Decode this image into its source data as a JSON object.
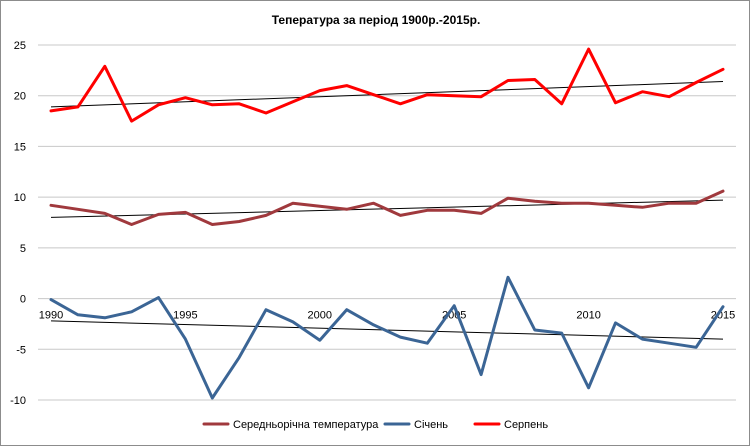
{
  "chart_data": {
    "type": "line",
    "title": "Тепература за період 1900р.-2015р.",
    "xlabel": "",
    "ylabel": "",
    "x": [
      1990,
      1991,
      1992,
      1993,
      1994,
      1995,
      1996,
      1997,
      1998,
      1999,
      2000,
      2001,
      2002,
      2003,
      2004,
      2005,
      2006,
      2007,
      2008,
      2009,
      2010,
      2011,
      2012,
      2013,
      2014,
      2015
    ],
    "x_tick_labels": [
      "1990",
      "1995",
      "2000",
      "2005",
      "2010",
      "2015"
    ],
    "x_tick_values": [
      1990,
      1995,
      2000,
      2005,
      2010,
      2015
    ],
    "ylim": [
      -10,
      25
    ],
    "y_ticks": [
      -10,
      -5,
      0,
      5,
      10,
      15,
      20,
      25
    ],
    "grid": "horizontal",
    "legend_position": "bottom",
    "series": [
      {
        "name": "Середньорічна температура",
        "color": "#a0393d",
        "values": [
          9.2,
          8.8,
          8.4,
          7.3,
          8.3,
          8.5,
          7.3,
          7.6,
          8.2,
          9.4,
          9.1,
          8.8,
          9.4,
          8.2,
          8.7,
          8.7,
          8.4,
          9.9,
          9.6,
          9.4,
          9.4,
          9.2,
          9.0,
          9.4,
          9.4,
          10.6
        ],
        "trend": [
          8.0,
          9.7
        ]
      },
      {
        "name": "Січень",
        "color": "#3b6595",
        "values": [
          -0.1,
          -1.6,
          -1.9,
          -1.3,
          0.1,
          -4.0,
          -9.8,
          -5.8,
          -1.1,
          -2.3,
          -4.1,
          -1.1,
          -2.6,
          -3.8,
          -4.4,
          -0.7,
          -7.5,
          2.1,
          -3.1,
          -3.4,
          -8.8,
          -2.4,
          -4.0,
          -4.4,
          -4.8,
          -0.8
        ],
        "trend": [
          -2.2,
          -4.0
        ]
      },
      {
        "name": "Серпень",
        "color": "#ff0000",
        "values": [
          18.5,
          18.9,
          22.9,
          17.5,
          19.1,
          19.8,
          19.1,
          19.2,
          18.3,
          19.4,
          20.5,
          21.0,
          20.1,
          19.2,
          20.1,
          20.0,
          19.9,
          21.5,
          21.6,
          19.2,
          24.6,
          19.3,
          20.4,
          19.9,
          21.3,
          22.6
        ],
        "trend": [
          18.9,
          21.4
        ]
      }
    ]
  }
}
